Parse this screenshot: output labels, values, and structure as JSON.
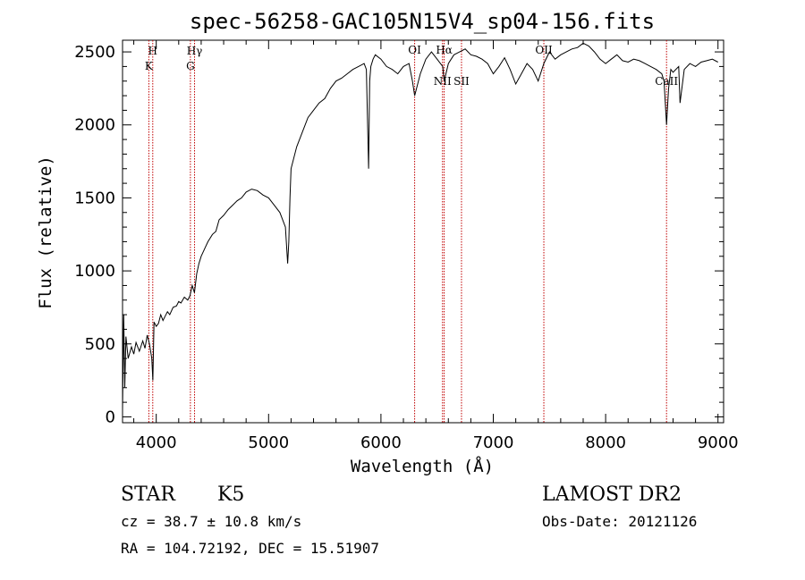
{
  "chart_data": {
    "type": "line",
    "title": "spec-56258-GAC105N15V4_sp04-156.fits",
    "xlabel": "Wavelength (Å)",
    "ylabel": "Flux (relative)",
    "xlim": [
      3700,
      9050
    ],
    "ylim": [
      -40,
      2580
    ],
    "xticks": [
      4000,
      5000,
      6000,
      7000,
      8000,
      9000
    ],
    "yticks": [
      0,
      500,
      1000,
      1500,
      2000,
      2500
    ],
    "grid": false,
    "series": [
      {
        "x": [
          3700,
          3710,
          3720,
          3730,
          3750,
          3780,
          3800,
          3820,
          3850,
          3880,
          3900,
          3920,
          3940,
          3960,
          3970,
          3980,
          4000,
          4020,
          4040,
          4060,
          4080,
          4100,
          4120,
          4150,
          4180,
          4200,
          4220,
          4250,
          4280,
          4300,
          4320,
          4340,
          4360,
          4380,
          4400,
          4430,
          4460,
          4500,
          4530,
          4560,
          4600,
          4640,
          4680,
          4720,
          4760,
          4800,
          4850,
          4900,
          4950,
          5000,
          5050,
          5100,
          5150,
          5170,
          5180,
          5190,
          5200,
          5250,
          5300,
          5350,
          5400,
          5450,
          5500,
          5550,
          5600,
          5650,
          5700,
          5750,
          5800,
          5850,
          5870,
          5890,
          5900,
          5910,
          5930,
          5950,
          6000,
          6050,
          6100,
          6150,
          6200,
          6250,
          6280,
          6300,
          6350,
          6400,
          6450,
          6500,
          6550,
          6563,
          6600,
          6650,
          6700,
          6750,
          6800,
          6850,
          6900,
          6950,
          7000,
          7050,
          7100,
          7150,
          7200,
          7250,
          7300,
          7350,
          7400,
          7450,
          7500,
          7550,
          7600,
          7650,
          7700,
          7750,
          7800,
          7850,
          7900,
          7950,
          8000,
          8050,
          8100,
          8150,
          8200,
          8250,
          8300,
          8350,
          8400,
          8450,
          8500,
          8520,
          8542,
          8560,
          8580,
          8600,
          8650,
          8662,
          8700,
          8750,
          8800,
          8850,
          8900,
          8950,
          9000
        ],
        "y": [
          50,
          700,
          200,
          550,
          400,
          480,
          430,
          510,
          450,
          520,
          470,
          560,
          500,
          400,
          250,
          650,
          620,
          640,
          700,
          660,
          690,
          720,
          700,
          750,
          760,
          790,
          780,
          820,
          800,
          830,
          900,
          850,
          980,
          1050,
          1100,
          1150,
          1200,
          1250,
          1270,
          1350,
          1380,
          1420,
          1450,
          1480,
          1500,
          1540,
          1560,
          1550,
          1520,
          1500,
          1450,
          1400,
          1300,
          1050,
          1200,
          1500,
          1700,
          1850,
          1950,
          2050,
          2100,
          2150,
          2180,
          2250,
          2300,
          2320,
          2350,
          2380,
          2400,
          2420,
          2380,
          1700,
          2300,
          2400,
          2450,
          2480,
          2450,
          2400,
          2380,
          2350,
          2400,
          2420,
          2300,
          2200,
          2350,
          2450,
          2500,
          2450,
          2400,
          2300,
          2420,
          2480,
          2500,
          2520,
          2480,
          2470,
          2450,
          2420,
          2350,
          2400,
          2460,
          2380,
          2280,
          2350,
          2420,
          2380,
          2300,
          2420,
          2500,
          2450,
          2480,
          2500,
          2520,
          2530,
          2560,
          2540,
          2500,
          2450,
          2420,
          2450,
          2480,
          2440,
          2430,
          2450,
          2440,
          2420,
          2400,
          2380,
          2350,
          2300,
          2000,
          2250,
          2380,
          2360,
          2400,
          2150,
          2380,
          2420,
          2400,
          2430,
          2440,
          2450,
          2430
        ]
      }
    ],
    "lines": [
      {
        "x": 3934,
        "label": "K"
      },
      {
        "x": 3969,
        "label": "H"
      },
      {
        "x": 4304,
        "label": "G"
      },
      {
        "x": 4341,
        "label": "Hγ"
      },
      {
        "x": 6300,
        "label": "OI"
      },
      {
        "x": 6548,
        "label": "NII"
      },
      {
        "x": 6563,
        "label": "Hα"
      },
      {
        "x": 6717,
        "label": "SII"
      },
      {
        "x": 7450,
        "label": "OII"
      },
      {
        "x": 8542,
        "label": "CaII"
      }
    ]
  },
  "info": {
    "class": "STAR",
    "subclass": "K5",
    "survey": "LAMOST DR2",
    "cz": "cz = 38.7 ± 10.8 km/s",
    "obsdate": "Obs-Date: 20121126",
    "radec": "RA = 104.72192, DEC =  15.51907"
  },
  "colors": {
    "line_marker": "#c00000",
    "spectrum": "#000000"
  }
}
